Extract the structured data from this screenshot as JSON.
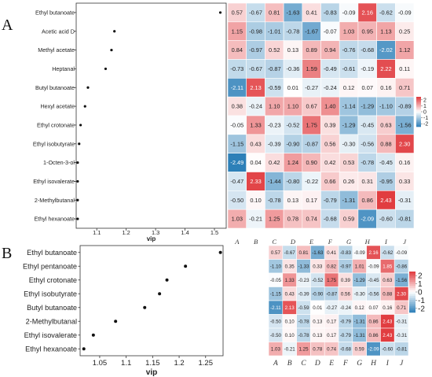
{
  "chart_data": [
    {
      "panel": "A",
      "type": "scatter",
      "xlabel": "vip",
      "xlim": [
        1.03,
        1.54
      ],
      "x_ticks": [
        "1.1",
        "1.2",
        "1.3",
        "1.4",
        "1.5"
      ],
      "x_tick_values": [
        1.1,
        1.2,
        1.3,
        1.4,
        1.5
      ],
      "categories": [
        "Ethyl butanoate",
        "Acetic acid D",
        "Methyl acetate",
        "Heptanal",
        "Butyl butanoate",
        "Hexyl acetate",
        "Ethyl crotonate",
        "Ethyl isobutyrate",
        "1-Octen-3-ol",
        "Ethyl isovalerate",
        "2-Methylbutanal",
        "Ethyl hexanoate"
      ],
      "values": [
        1.52,
        1.16,
        1.15,
        1.13,
        1.07,
        1.06,
        1.045,
        1.04,
        1.035,
        1.035,
        1.035,
        1.035
      ],
      "heatmap": {
        "type": "heatmap",
        "columns": [
          "A",
          "B",
          "C",
          "D",
          "E",
          "F",
          "G",
          "H",
          "I",
          "J"
        ],
        "rows": [
          [
            "0.57",
            "-0.67",
            "0.81",
            "-1.63",
            "0.41",
            "-0.83",
            "-0.09",
            "2.16",
            "-0.62",
            "-0.09"
          ],
          [
            "1.15",
            "-0.98",
            "-1.01",
            "-0.78",
            "-1.67",
            "-0.07",
            "1.03",
            "0.95",
            "1.13",
            "0.25"
          ],
          [
            "0.84",
            "-0.97",
            "0.52",
            "0.13",
            "0.89",
            "0.94",
            "-0.76",
            "-0.68",
            "-2.02",
            "1.12"
          ],
          [
            "-0.73",
            "-0.67",
            "-0.87",
            "-0.36",
            "1.59",
            "-0.49",
            "-0.61",
            "-0.19",
            "2.22",
            "0.11"
          ],
          [
            "-2.11",
            "2.13",
            "-0.59",
            "0.01",
            "-0.27",
            "-0.24",
            "0.12",
            "0.07",
            "0.16",
            "0.71"
          ],
          [
            "0.38",
            "-0.24",
            "1.10",
            "1.10",
            "0.67",
            "1.40",
            "-1.14",
            "-1.29",
            "-1.10",
            "-0.89"
          ],
          [
            "-0.05",
            "1.33",
            "-0.23",
            "-0.52",
            "1.75",
            "0.39",
            "-1.29",
            "-0.45",
            "0.63",
            "-1.56"
          ],
          [
            "-1.15",
            "0.43",
            "-0.39",
            "-0.90",
            "-0.87",
            "0.56",
            "-0.30",
            "-0.56",
            "0.88",
            "2.30"
          ],
          [
            "-2.49",
            "0.04",
            "0.42",
            "1.24",
            "0.90",
            "0.42",
            "0.53",
            "-0.78",
            "-0.45",
            "0.16"
          ],
          [
            "-0.47",
            "2.33",
            "-1.44",
            "-0.80",
            "-0.22",
            "0.66",
            "0.26",
            "0.31",
            "-0.95",
            "0.33"
          ],
          [
            "-0.50",
            "0.10",
            "-0.78",
            "0.13",
            "0.17",
            "-0.79",
            "-1.31",
            "0.86",
            "2.43",
            "-0.31"
          ],
          [
            "1.03",
            "-0.21",
            "1.25",
            "0.78",
            "0.74",
            "-0.68",
            "0.59",
            "-2.09",
            "-0.60",
            "-0.81"
          ]
        ],
        "legend_ticks": [
          "2",
          "1",
          "0",
          "-1",
          "-2"
        ],
        "legend_tick_values": [
          2,
          1,
          0,
          -1,
          -2
        ],
        "color_range": [
          -2.5,
          2.5
        ],
        "colors": {
          "low": "#2c7fb8",
          "mid": "#ffffff",
          "high": "#e0373b"
        }
      }
    },
    {
      "panel": "B",
      "type": "scatter",
      "xlabel": "vip",
      "xlim": [
        1.013,
        1.283
      ],
      "x_ticks": [
        "1.05",
        "1.1",
        "1.15",
        "1.2",
        "1.25"
      ],
      "x_tick_values": [
        1.05,
        1.1,
        1.15,
        1.2,
        1.25
      ],
      "categories": [
        "Ethyl butanoate",
        "Ethyl pentanoate",
        "Ethyl crotonate",
        "Ethyl isobutyrate",
        "Butyl butanoate",
        "2-Methylbutanal",
        "Ethyl isovalerate",
        "Ethyl hexanoate"
      ],
      "values": [
        1.278,
        1.212,
        1.177,
        1.163,
        1.135,
        1.08,
        1.038,
        1.02
      ],
      "heatmap": {
        "type": "heatmap",
        "columns": [
          "A",
          "B",
          "C",
          "D",
          "E",
          "F",
          "G",
          "H",
          "I",
          "J"
        ],
        "rows": [
          [
            "0.57",
            "-0.67",
            "0.81",
            "-1.63",
            "0.41",
            "-0.83",
            "-0.09",
            "2.16",
            "-0.62",
            "-0.09"
          ],
          [
            "-1.10",
            "0.35",
            "-1.33",
            "0.33",
            "0.82",
            "-0.97",
            "1.01",
            "-0.09",
            "1.85",
            "-0.86"
          ],
          [
            "-0.05",
            "1.33",
            "-0.23",
            "-0.52",
            "1.75",
            "0.39",
            "-1.29",
            "-0.45",
            "0.63",
            "-1.56"
          ],
          [
            "-1.15",
            "0.43",
            "-0.39",
            "-0.90",
            "-0.87",
            "0.56",
            "-0.30",
            "-0.56",
            "0.88",
            "2.30"
          ],
          [
            "-2.11",
            "2.13",
            "-0.59",
            "0.01",
            "-0.27",
            "-0.24",
            "0.12",
            "0.07",
            "0.16",
            "0.71"
          ],
          [
            "-0.50",
            "0.10",
            "-0.78",
            "0.13",
            "0.17",
            "-0.79",
            "-1.31",
            "0.86",
            "2.43",
            "-0.31"
          ],
          [
            "-0.50",
            "0.10",
            "-0.78",
            "0.13",
            "0.17",
            "-0.79",
            "-1.31",
            "0.86",
            "2.43",
            "-0.31"
          ],
          [
            "1.03",
            "-0.21",
            "1.25",
            "0.78",
            "0.74",
            "-0.68",
            "0.59",
            "-2.09",
            "-0.60",
            "-0.81"
          ]
        ],
        "legend_ticks": [
          "2",
          "1",
          "0",
          "-1",
          "-2"
        ],
        "legend_tick_values": [
          2,
          1,
          0,
          -1,
          -2
        ],
        "color_range": [
          -2.5,
          2.5
        ],
        "colors": {
          "low": "#2c7fb8",
          "mid": "#ffffff",
          "high": "#e0373b"
        }
      }
    }
  ]
}
